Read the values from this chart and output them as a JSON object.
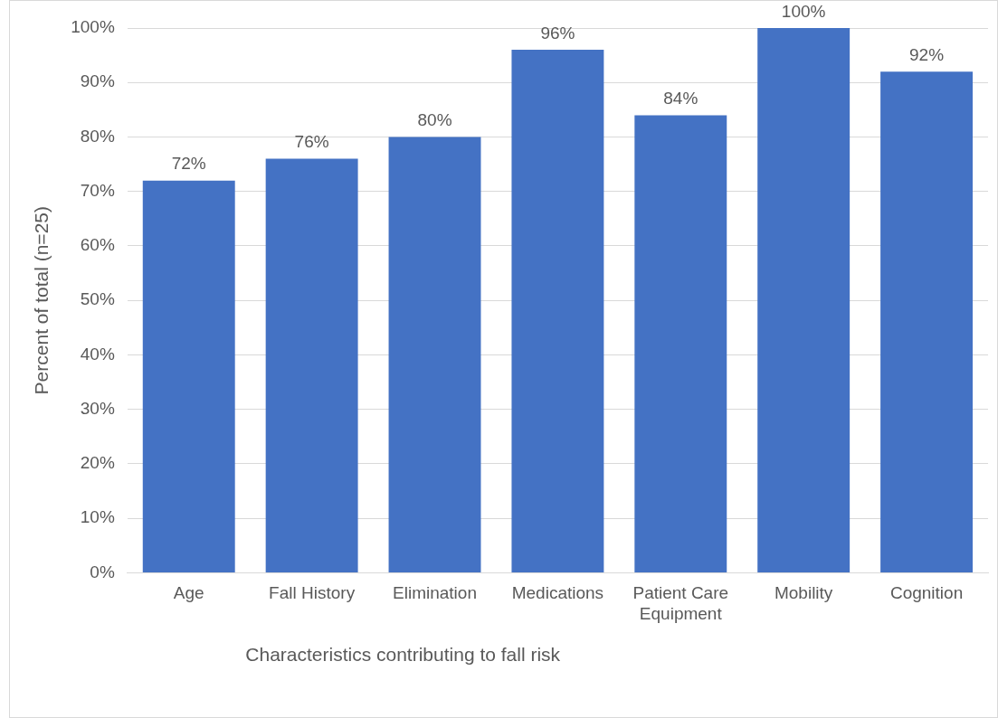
{
  "chart_data": {
    "type": "bar",
    "categories": [
      "Age",
      "Fall History",
      "Elimination",
      "Medications",
      "Patient Care Equipment",
      "Mobility",
      "Cognition"
    ],
    "values": [
      72,
      76,
      80,
      96,
      84,
      100,
      92
    ],
    "value_labels": [
      "72%",
      "76%",
      "80%",
      "96%",
      "84%",
      "100%",
      "92%"
    ],
    "color": "#4472c4",
    "xlabel": "Characteristics contributing to fall risk",
    "ylabel": "Percent of total (n=25)",
    "ylim": [
      0,
      100
    ],
    "yticks": [
      {
        "value": 0,
        "label": "0%"
      },
      {
        "value": 10,
        "label": "10%"
      },
      {
        "value": 20,
        "label": "20%"
      },
      {
        "value": 30,
        "label": "30%"
      },
      {
        "value": 40,
        "label": "40%"
      },
      {
        "value": 50,
        "label": "50%"
      },
      {
        "value": 60,
        "label": "60%"
      },
      {
        "value": 70,
        "label": "70%"
      },
      {
        "value": 80,
        "label": "80%"
      },
      {
        "value": 90,
        "label": "90%"
      },
      {
        "value": 100,
        "label": "100%"
      }
    ],
    "grid": "y"
  }
}
